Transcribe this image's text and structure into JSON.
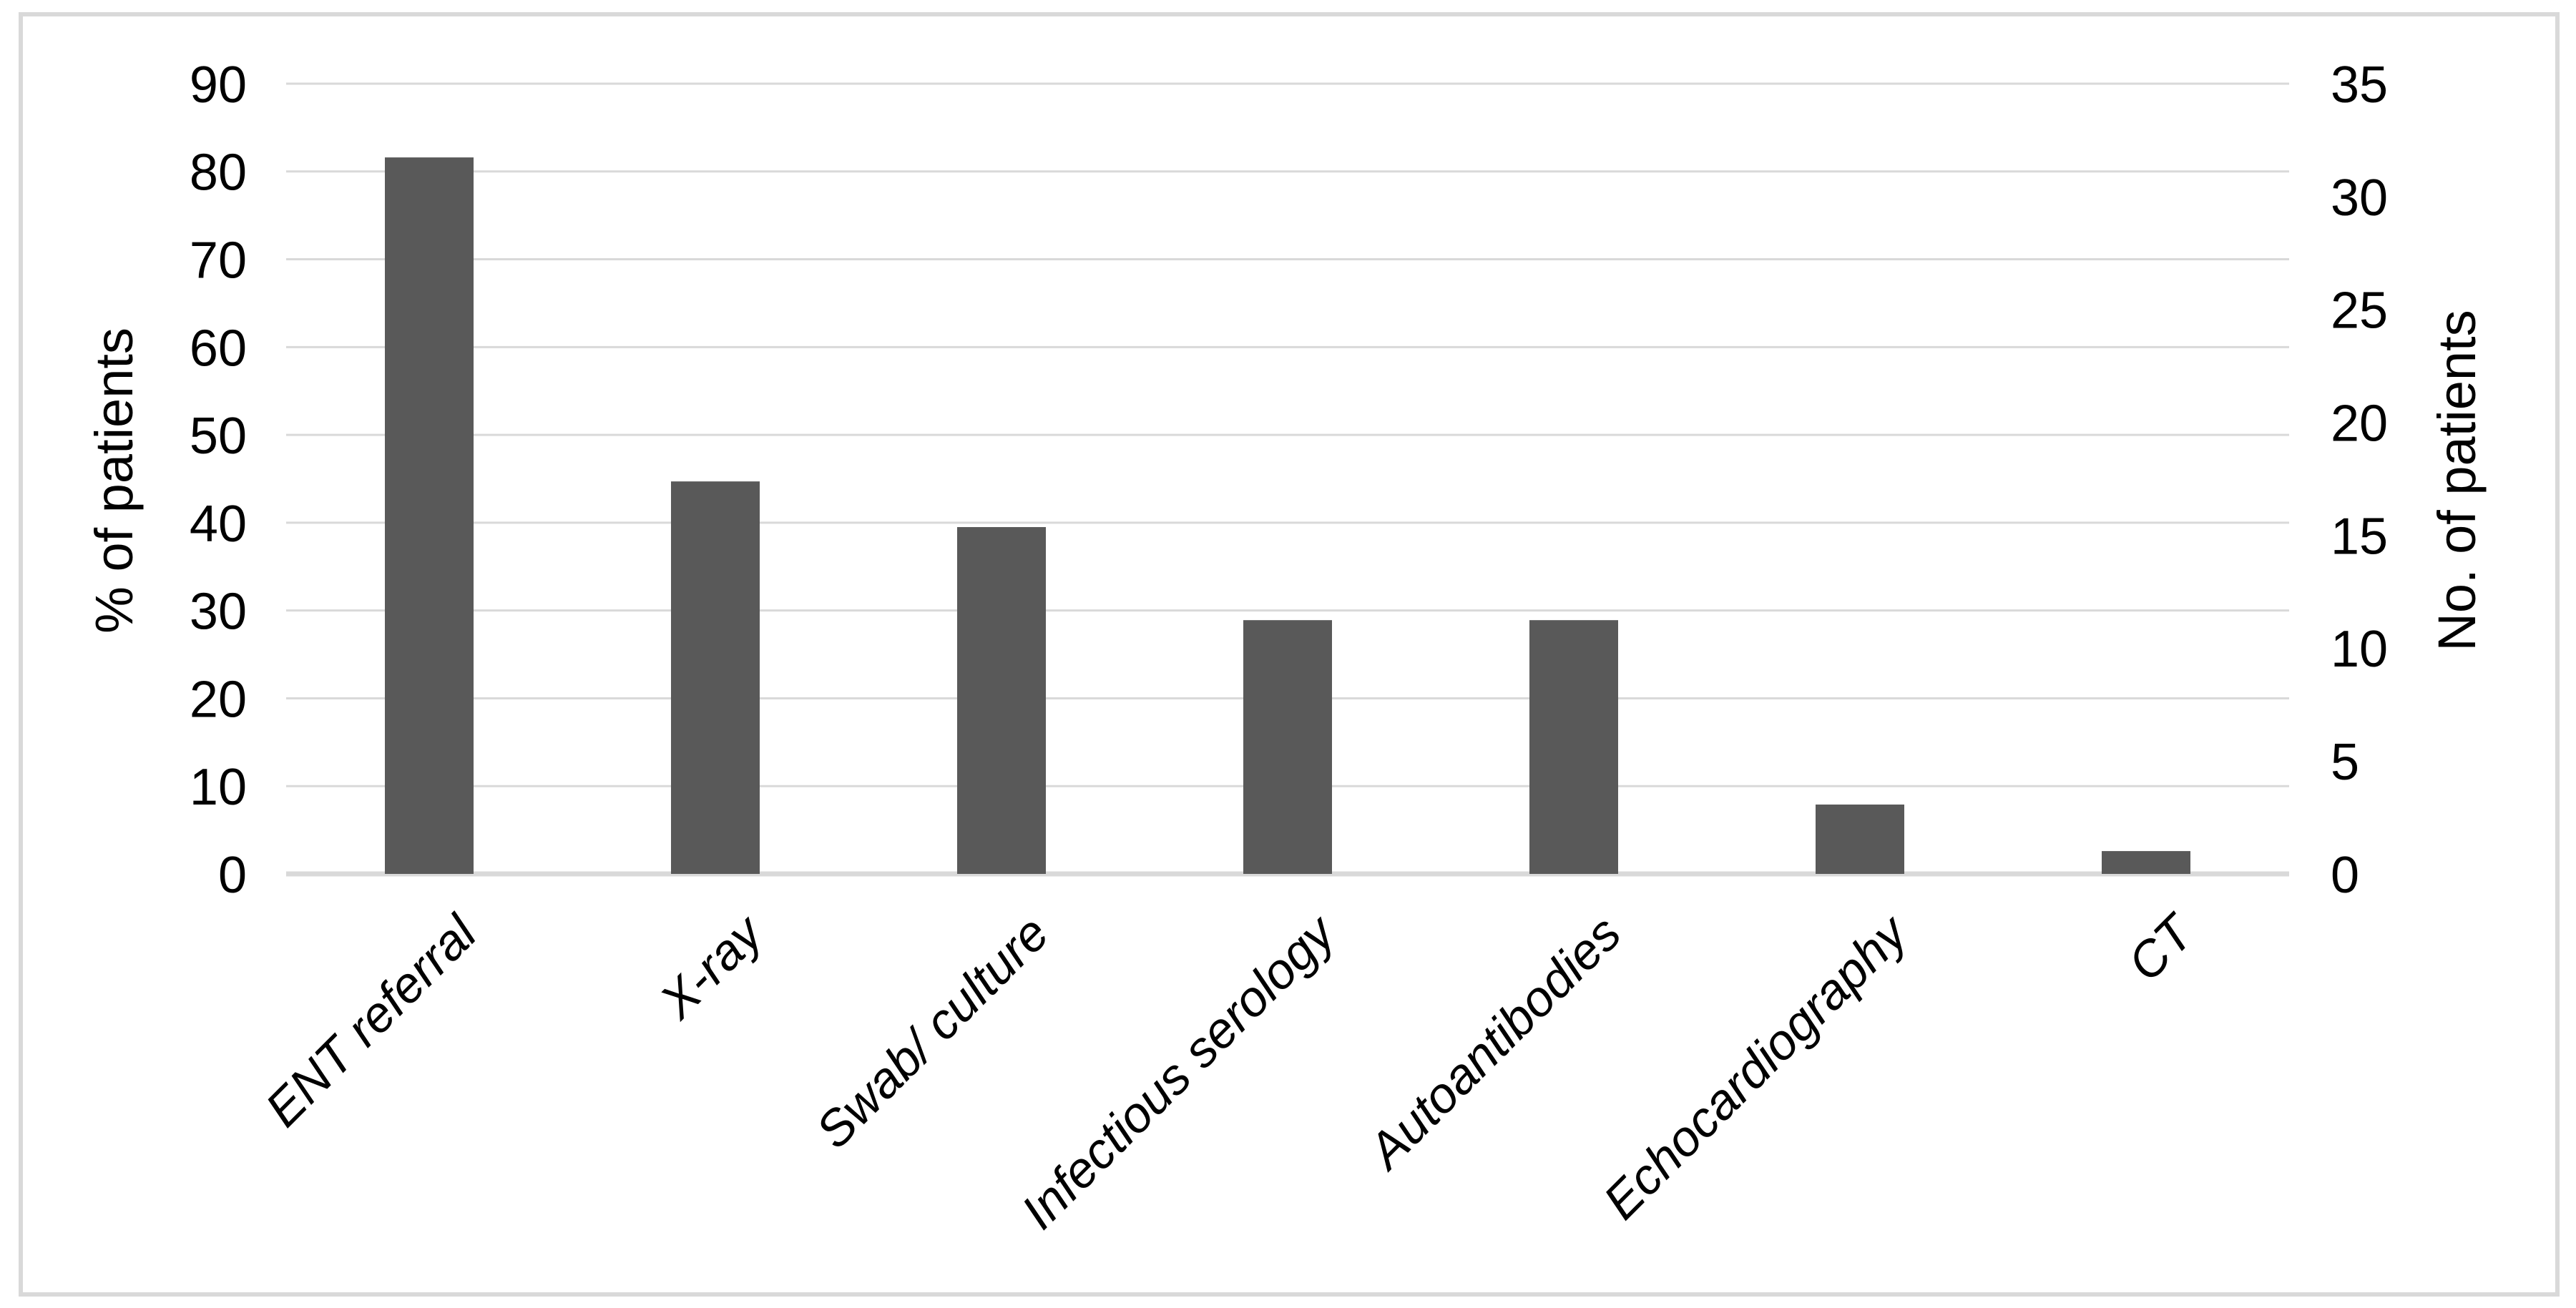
{
  "chart_data": {
    "type": "bar",
    "title": "",
    "categories": [
      "ENT referral",
      "X-ray",
      "Swab/ culture",
      "Infectious serology",
      "Autoantibodies",
      "Echocardiography",
      "CT"
    ],
    "values": [
      81.6,
      44.7,
      39.5,
      28.9,
      28.9,
      7.9,
      2.6
    ],
    "series_unit": "percent",
    "ylabel_left": "% of patients",
    "ylabel_right": "No. of patients",
    "xlabel": "",
    "y_left_axis": {
      "min": 0,
      "max": 90,
      "step": 10,
      "tick_labels_top_to_bottom": [
        "90",
        "80",
        "70",
        "60",
        "50",
        "40",
        "30",
        "20",
        "10",
        "0"
      ]
    },
    "y_right_axis": {
      "min": 0,
      "max": 35,
      "step": 5,
      "tick_labels_top_to_bottom": [
        "35",
        "30",
        "25",
        "20",
        "15",
        "10",
        "5",
        "0"
      ]
    },
    "grid": true,
    "legend": false,
    "category_label_rotation_deg": -45,
    "category_label_style": "italic",
    "colors": {
      "bar": "#595959",
      "gridline": "#d9d9d9",
      "axis_line": "#d9d9d9",
      "frame_border": "#d9d9d9",
      "text": "#000000",
      "background": "#ffffff"
    }
  }
}
